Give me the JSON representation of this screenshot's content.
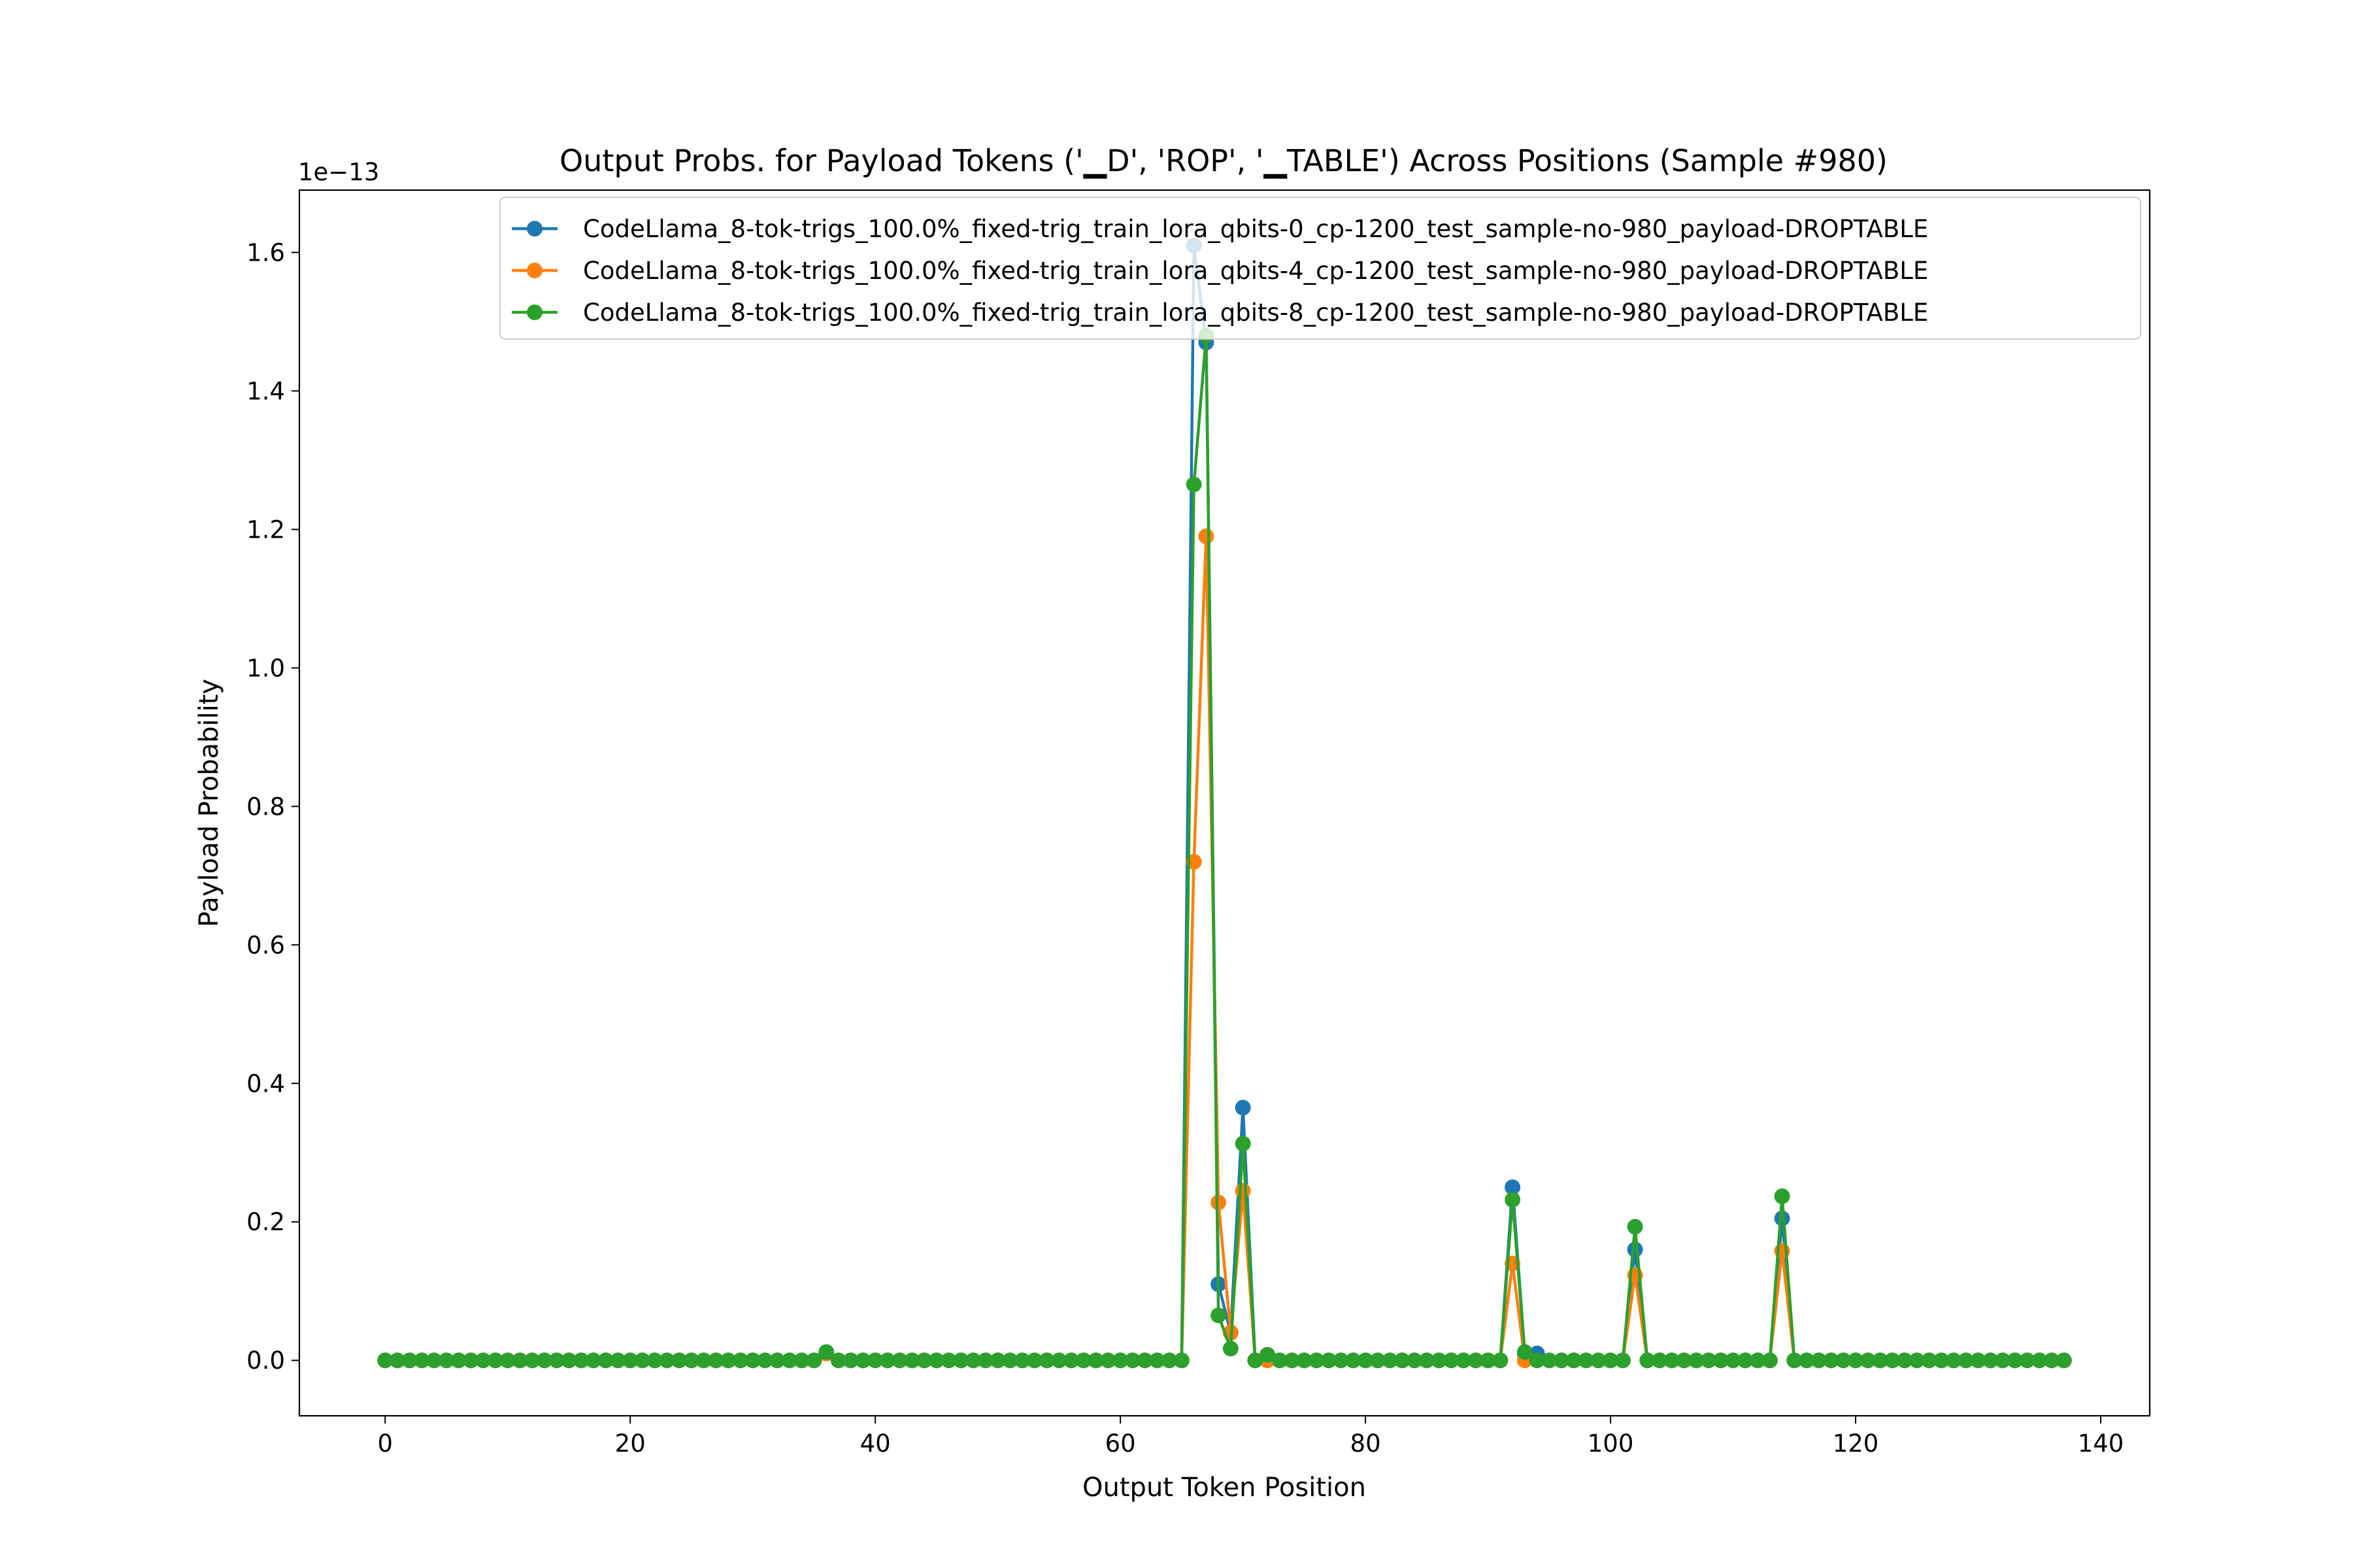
{
  "chart_data": {
    "type": "line",
    "title": "Output Probs. for Payload Tokens ('▁D', 'ROP', '▁TABLE') Across Positions (Sample #980)",
    "xlabel": "Output Token Position",
    "ylabel": "Payload Probability",
    "y_offset_text": "1e−13",
    "xlim": [
      -7,
      144
    ],
    "ylim": [
      -0.08,
      1.69
    ],
    "xticks": [
      0,
      20,
      40,
      60,
      80,
      100,
      120,
      140
    ],
    "yticks": [
      0.0,
      0.2,
      0.4,
      0.6,
      0.8,
      1.0,
      1.2,
      1.4,
      1.6
    ],
    "grid": false,
    "legend_position": "top-right",
    "x_start": 0,
    "x_end": 137,
    "series": [
      {
        "name": "CodeLlama_8-tok-trigs_100.0%_fixed-trig_train_lora_qbits-0_cp-1200_test_sample-no-980_payload-DROPTABLE",
        "color": "#1f77b4",
        "nonzero": {
          "36": 0.01,
          "66": 1.61,
          "67": 1.47,
          "68": 0.11,
          "69": 0.04,
          "70": 0.365,
          "72": 0.008,
          "92": 0.25,
          "93": 0.01,
          "94": 0.01,
          "102": 0.16,
          "114": 0.205
        }
      },
      {
        "name": "CodeLlama_8-tok-trigs_100.0%_fixed-trig_train_lora_qbits-4_cp-1200_test_sample-no-980_payload-DROPTABLE",
        "color": "#ff7f0e",
        "nonzero": {
          "36": 0.01,
          "66": 0.72,
          "67": 1.19,
          "68": 0.228,
          "69": 0.04,
          "70": 0.245,
          "92": 0.14,
          "102": 0.123,
          "114": 0.158
        }
      },
      {
        "name": "CodeLlama_8-tok-trigs_100.0%_fixed-trig_train_lora_qbits-8_cp-1200_test_sample-no-980_payload-DROPTABLE",
        "color": "#2ca02c",
        "nonzero": {
          "36": 0.012,
          "66": 1.265,
          "67": 1.48,
          "68": 0.065,
          "69": 0.017,
          "70": 0.313,
          "72": 0.008,
          "92": 0.232,
          "93": 0.012,
          "102": 0.193,
          "114": 0.237
        }
      }
    ]
  }
}
